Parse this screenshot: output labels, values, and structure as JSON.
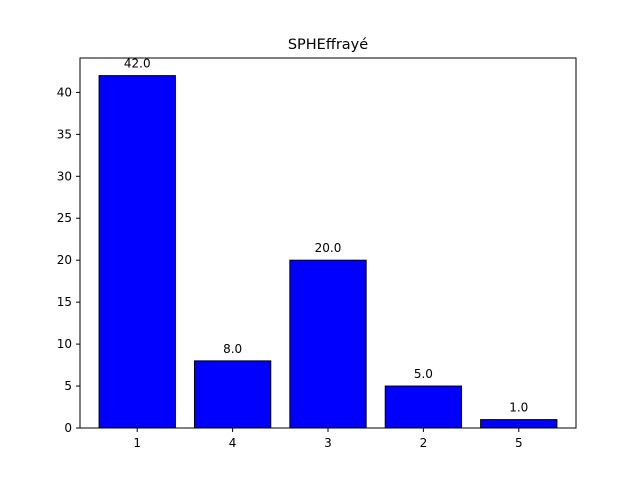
{
  "chart_data": {
    "type": "bar",
    "title": "SPHEffrayé",
    "xlabel": "",
    "ylabel": "",
    "categories": [
      "1",
      "4",
      "3",
      "2",
      "5"
    ],
    "values": [
      42,
      8,
      20,
      5,
      1
    ],
    "data_labels": [
      "42.0",
      "8.0",
      "20.0",
      "5.0",
      "1.0"
    ],
    "ylim": [
      0,
      44.1
    ],
    "yticks": [
      0,
      5,
      10,
      15,
      20,
      25,
      30,
      35,
      40
    ],
    "ytick_labels": [
      "0",
      "5",
      "10",
      "15",
      "20",
      "25",
      "30",
      "35",
      "40"
    ],
    "bar_color": "#0000ff",
    "edge_color": "#000000",
    "grid": false,
    "legend": "none"
  }
}
